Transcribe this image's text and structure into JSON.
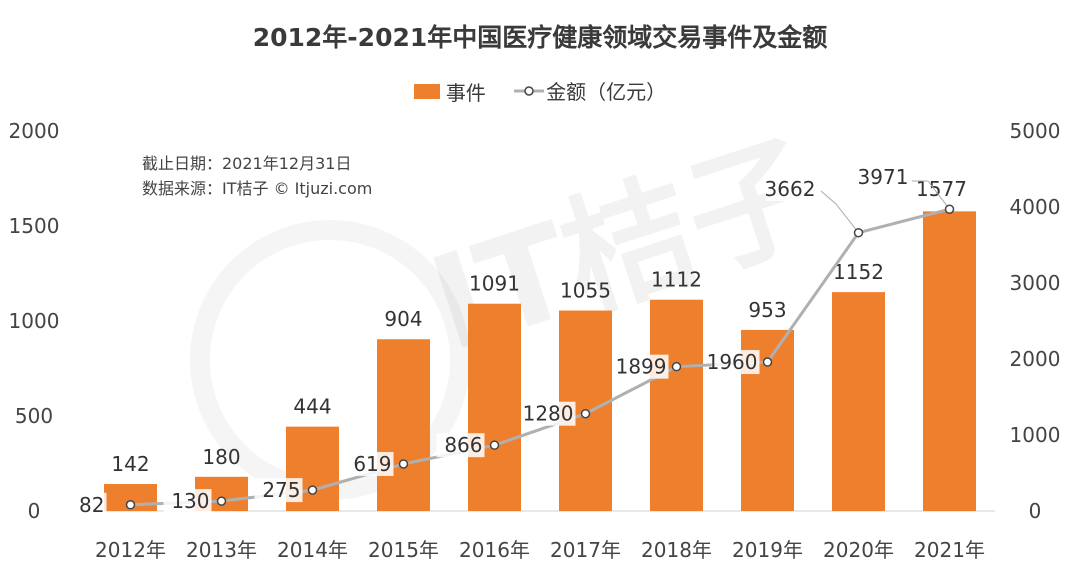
{
  "chart_data": {
    "type": "bar",
    "title": "2012年-2021年中国医疗健康领域交易事件及金额",
    "categories": [
      "2012年",
      "2013年",
      "2014年",
      "2015年",
      "2016年",
      "2017年",
      "2018年",
      "2019年",
      "2020年",
      "2021年"
    ],
    "series": [
      {
        "name": "事件",
        "type": "bar",
        "axis": "left",
        "values": [
          142,
          180,
          444,
          904,
          1091,
          1055,
          1112,
          953,
          1152,
          1577
        ]
      },
      {
        "name": "金额（亿元）",
        "type": "line",
        "axis": "right",
        "values": [
          82,
          130,
          275,
          619,
          866,
          1280,
          1899,
          1960,
          3662,
          3971
        ]
      }
    ],
    "y_left": {
      "ylim": [
        0,
        2000
      ],
      "ticks": [
        "0",
        "500",
        "1000",
        "1500",
        "2000"
      ]
    },
    "y_right": {
      "ylim": [
        0,
        5000
      ],
      "ticks": [
        "0",
        "1000",
        "2000",
        "3000",
        "4000",
        "5000"
      ]
    },
    "legend": "top-center",
    "grid": false,
    "colors": {
      "bar": "#ee7f2d",
      "line": "#b0b0b0",
      "marker_fill": "#ffffff",
      "marker_stroke": "#444444"
    },
    "annotations": [
      "截止日期：2021年12月31日",
      "数据来源：IT桔子 © Itjuzi.com"
    ],
    "watermark": "IT桔子"
  }
}
